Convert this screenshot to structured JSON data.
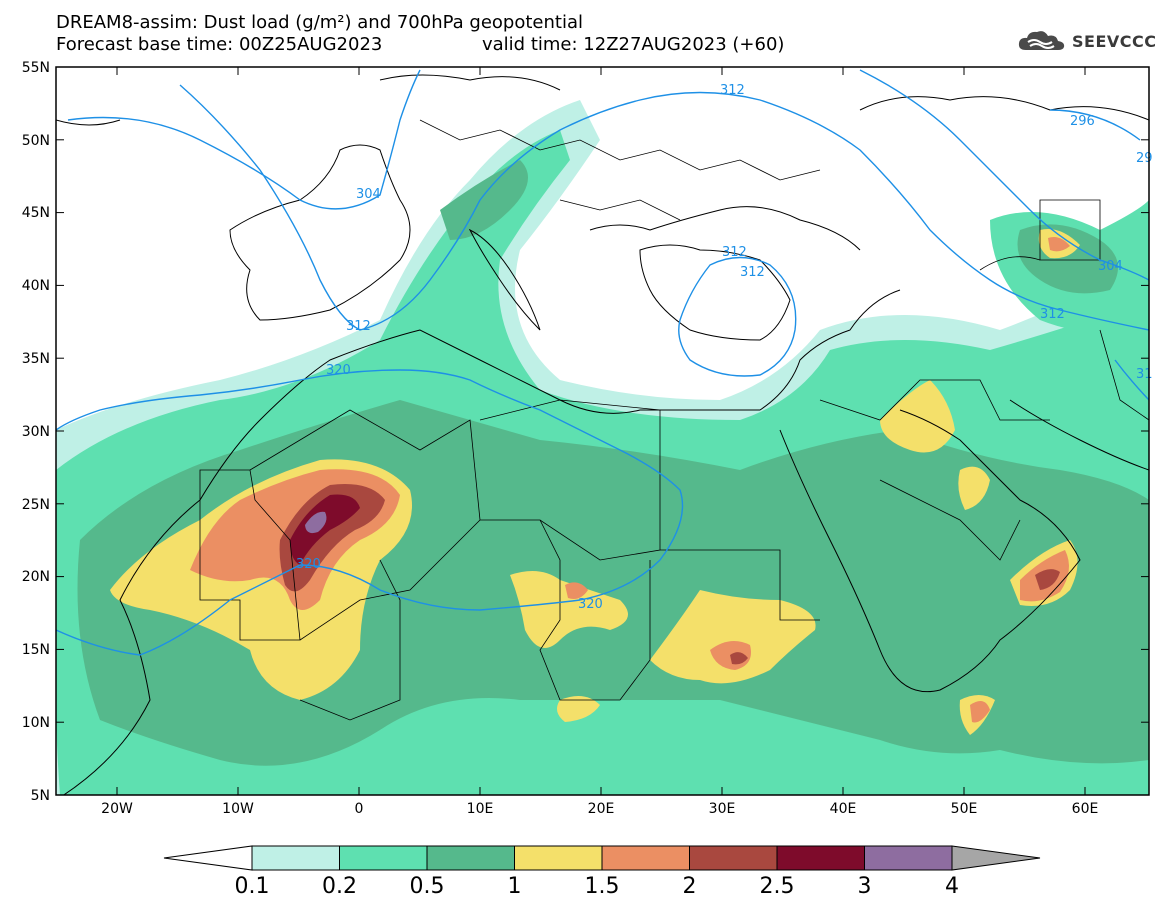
{
  "header": {
    "title_line1": "DREAM8-assim: Dust load (g/m²) and 700hPa geopotential",
    "title_line2_left": "Forecast base time: 00Z25AUG2023",
    "title_line2_right": "valid time: 12Z27AUG2023 (+60)",
    "logo_text": "SEEVCCC"
  },
  "map": {
    "lat_labels": [
      "55N",
      "50N",
      "45N",
      "40N",
      "35N",
      "30N",
      "25N",
      "20N",
      "15N",
      "10N",
      "5N"
    ],
    "lon_labels": [
      "20W",
      "10W",
      "0",
      "10E",
      "20E",
      "30E",
      "40E",
      "50E",
      "60E"
    ],
    "contour_labels": [
      "312",
      "304",
      "296",
      "29",
      "312",
      "312",
      "304",
      "312",
      "320",
      "320",
      "320",
      "31"
    ]
  },
  "colorbar": {
    "ticks": [
      "0.1",
      "0.2",
      "0.5",
      "1",
      "1.5",
      "2",
      "2.5",
      "3",
      "4"
    ],
    "colors": [
      "#bff0e6",
      "#5ee0b0",
      "#55b98c",
      "#f4e06a",
      "#eb8f63",
      "#a9483f",
      "#7e0b2b",
      "#8e6da0"
    ],
    "over_color": "#a6a6a6",
    "under_color": "#ffffff"
  },
  "colors": {
    "contour": "#1e90e6",
    "frame": "#000000"
  }
}
